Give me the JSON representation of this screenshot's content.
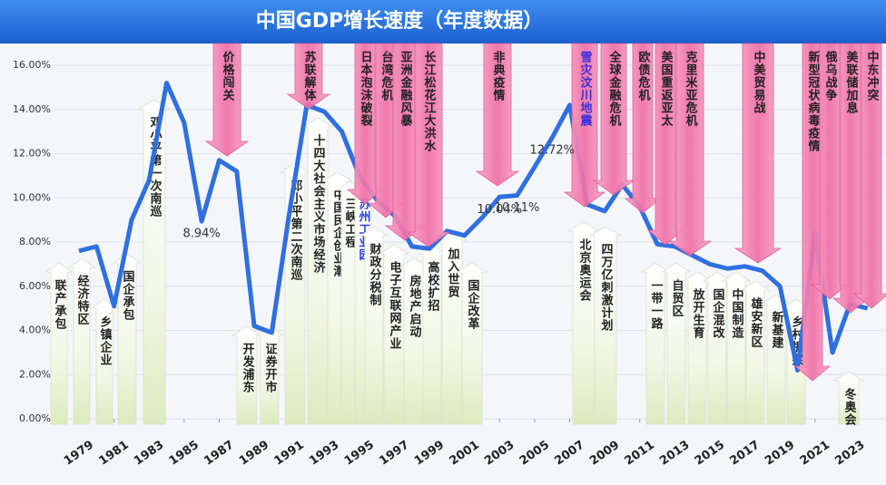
{
  "chart_data": {
    "type": "line",
    "title": "中国GDP增长速度（年度数据）",
    "x": [
      1979,
      1980,
      1981,
      1982,
      1983,
      1984,
      1985,
      1986,
      1987,
      1988,
      1989,
      1990,
      1991,
      1992,
      1993,
      1994,
      1995,
      1996,
      1997,
      1998,
      1999,
      2000,
      2001,
      2002,
      2003,
      2004,
      2005,
      2006,
      2007,
      2008,
      2009,
      2010,
      2011,
      2012,
      2013,
      2014,
      2015,
      2016,
      2017,
      2018,
      2019,
      2020,
      2021,
      2022,
      2023,
      2024
    ],
    "series": [
      {
        "name": "GDP增长速度",
        "color": "#2f6fe0",
        "values": [
          7.6,
          7.8,
          5.1,
          9.0,
          10.8,
          15.2,
          13.4,
          8.94,
          11.7,
          11.2,
          4.2,
          3.9,
          9.3,
          14.2,
          13.9,
          13.0,
          11.0,
          9.9,
          9.2,
          7.8,
          7.7,
          8.5,
          8.3,
          9.1,
          10.04,
          10.11,
          11.4,
          12.72,
          14.2,
          9.7,
          9.4,
          10.6,
          9.6,
          7.9,
          7.8,
          7.4,
          7.0,
          6.8,
          6.9,
          6.7,
          6.0,
          2.2,
          8.4,
          3.0,
          5.2,
          5.0
        ],
        "value_labels": [
          null,
          null,
          null,
          null,
          null,
          null,
          null,
          "8.94%",
          null,
          null,
          null,
          null,
          null,
          null,
          null,
          null,
          null,
          null,
          null,
          null,
          null,
          null,
          null,
          null,
          "10.04%",
          "10.11%",
          null,
          "12.72%",
          null,
          null,
          null,
          null,
          null,
          null,
          null,
          null,
          null,
          null,
          null,
          null,
          null,
          null,
          null,
          null,
          null,
          null
        ]
      }
    ],
    "xlim": [
      1977.6,
      2025
    ],
    "xticks": [
      1979,
      1981,
      1983,
      1985,
      1987,
      1989,
      1991,
      1993,
      1995,
      1997,
      1999,
      2001,
      2003,
      2005,
      2007,
      2009,
      2011,
      2013,
      2015,
      2017,
      2019,
      2021,
      2023
    ],
    "ylim": [
      0,
      16
    ],
    "yticks": [
      {
        "value": 0,
        "label": "0.00%"
      },
      {
        "value": 2,
        "label": "2.00%"
      },
      {
        "value": 4,
        "label": "4.00%"
      },
      {
        "value": 6,
        "label": "6.00%"
      },
      {
        "value": 8,
        "label": "8.00%"
      },
      {
        "value": 10,
        "label": "10.00%"
      },
      {
        "value": 12,
        "label": "12.00%"
      },
      {
        "value": 14,
        "label": "14.00%"
      },
      {
        "value": 16,
        "label": "16.00%"
      }
    ],
    "grid": true,
    "events": [
      {
        "text": "价格闯关"
      },
      {
        "text": "苏联解体"
      },
      {
        "text": "日本泡沫破裂"
      },
      {
        "text": "台湾危机"
      },
      {
        "text": "亚洲金融风暴"
      },
      {
        "text": "长江松花江大洪水"
      },
      {
        "text": "非典疫情"
      },
      {
        "text": "雪灾汶川地震",
        "color": "#3a2ee0"
      },
      {
        "text": "全球金融危机"
      },
      {
        "text": "欧债危机"
      },
      {
        "text": "美国重返亚太"
      },
      {
        "text": "克里米亚危机"
      },
      {
        "text": "中美贸易战"
      },
      {
        "text": "新型冠状病毒疫情"
      },
      {
        "text": "俄乌战争"
      },
      {
        "text": "美联储加息"
      },
      {
        "text": "中东冲突"
      }
    ],
    "policies": [
      {
        "text": "联产承包"
      },
      {
        "text": "经济特区"
      },
      {
        "text": "乡镇企业"
      },
      {
        "text": "国企承包"
      },
      {
        "text": "邓小平第一次南巡"
      },
      {
        "text": "开发浦东"
      },
      {
        "text": "证券开市"
      },
      {
        "text": "邓小平第二次南巡"
      },
      {
        "text": "十四大社会主义市场经济"
      },
      {
        "text": "中国民企创业潮"
      },
      {
        "text": "三峡工程"
      },
      {
        "text": "苏州工业园",
        "color": "#2a3fe0"
      },
      {
        "text": "财政分税制"
      },
      {
        "text": "电子互联网产业"
      },
      {
        "text": "房地产启动"
      },
      {
        "text": "高校扩招"
      },
      {
        "text": "加入世贸"
      },
      {
        "text": "国企改革"
      },
      {
        "text": "北京奥运会"
      },
      {
        "text": "四万亿刺激计划"
      },
      {
        "text": "一带一路"
      },
      {
        "text": "自贸区"
      },
      {
        "text": "放开生育"
      },
      {
        "text": "国企混改"
      },
      {
        "text": "中国制造"
      },
      {
        "text": "雄安新区"
      },
      {
        "text": "新基建"
      },
      {
        "text": "乡村振兴"
      },
      {
        "text": "冬奥会"
      }
    ]
  }
}
